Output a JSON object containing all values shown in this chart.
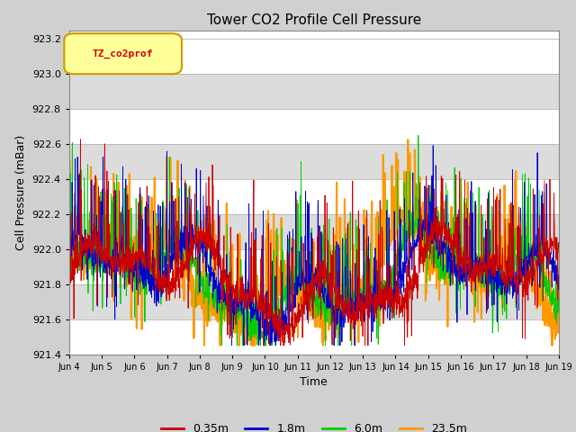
{
  "title": "Tower CO2 Profile Cell Pressure",
  "ylabel": "Cell Pressure (mBar)",
  "xlabel": "Time",
  "ylim": [
    921.4,
    923.25
  ],
  "yticks": [
    921.4,
    921.6,
    921.8,
    922.0,
    922.2,
    922.4,
    922.6,
    922.8,
    923.0,
    923.2
  ],
  "xtick_labels": [
    "Jun 4",
    "Jun 5",
    "Jun 6",
    "Jun 7",
    "Jun 8",
    "Jun 9",
    "Jun 10",
    "Jun 11",
    "Jun 12",
    "Jun 13",
    "Jun 14",
    "Jun 15",
    "Jun 16",
    "Jun 17",
    "Jun 18",
    "Jun 19"
  ],
  "series": {
    "0.35m": {
      "color": "#cc0000",
      "lw": 0.6
    },
    "1.8m": {
      "color": "#0000cc",
      "lw": 0.6
    },
    "6.0m": {
      "color": "#00cc00",
      "lw": 0.6
    },
    "23.5m": {
      "color": "#ff9900",
      "lw": 1.5
    }
  },
  "legend_label": "TZ_co2prof",
  "legend_box_color": "#ffff99",
  "legend_box_edge": "#cc9900",
  "legend_text_color": "#cc0000",
  "bg_color": "#e8e8e8",
  "plot_bg": "#e8e8e8",
  "title_fontsize": 11,
  "axis_fontsize": 9,
  "tick_fontsize": 8,
  "n_days": 15,
  "pts_per_day": 144,
  "seed": 42
}
